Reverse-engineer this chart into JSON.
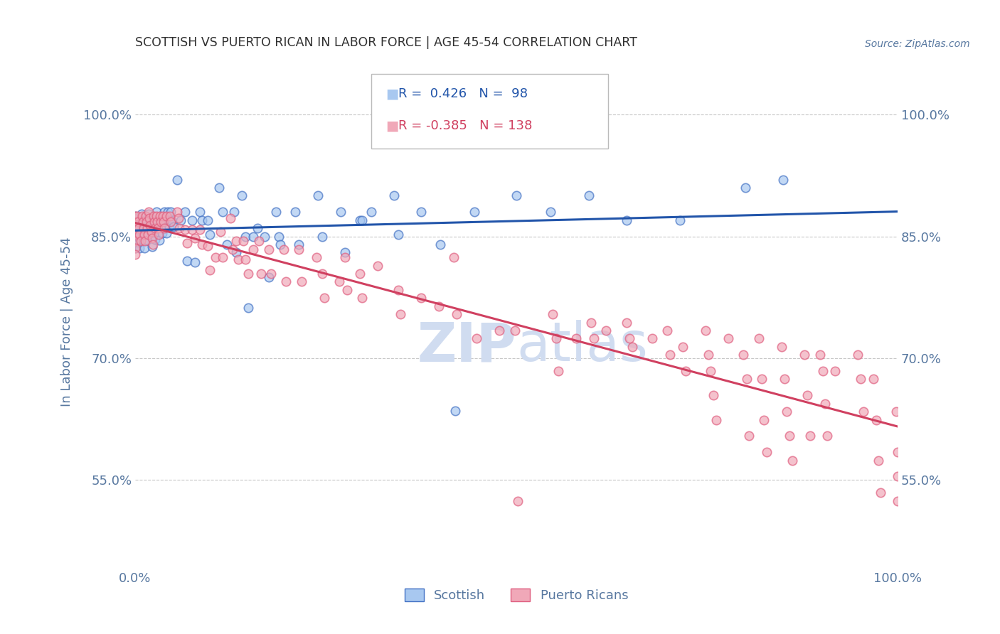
{
  "title": "SCOTTISH VS PUERTO RICAN IN LABOR FORCE | AGE 45-54 CORRELATION CHART",
  "source_text": "Source: ZipAtlas.com",
  "ylabel": "In Labor Force | Age 45-54",
  "xlim": [
    0.0,
    1.0
  ],
  "ylim": [
    0.44,
    1.05
  ],
  "y_ticks": [
    0.55,
    0.7,
    0.85,
    1.0
  ],
  "x_ticks": [
    0.0,
    1.0
  ],
  "scottish_color": "#A8C8F0",
  "puerto_color": "#F0A8B8",
  "scottish_edge_color": "#4472C4",
  "puerto_edge_color": "#E06080",
  "scottish_line_color": "#2255AA",
  "puerto_line_color": "#D04060",
  "watermark_color": "#D0DCF0",
  "background_color": "#FFFFFF",
  "grid_color": "#C8C8C8",
  "title_color": "#303030",
  "axis_label_color": "#5878A0",
  "tick_label_color": "#5878A0",
  "scottish_points": [
    [
      0.0,
      0.87
    ],
    [
      0.0,
      0.875
    ],
    [
      0.0,
      0.86
    ],
    [
      0.0,
      0.855
    ],
    [
      0.0,
      0.848
    ],
    [
      0.0,
      0.842
    ],
    [
      0.0,
      0.836
    ],
    [
      0.0,
      0.858
    ],
    [
      0.0,
      0.864
    ],
    [
      0.002,
      0.872
    ],
    [
      0.003,
      0.866
    ],
    [
      0.004,
      0.858
    ],
    [
      0.005,
      0.85
    ],
    [
      0.005,
      0.843
    ],
    [
      0.006,
      0.836
    ],
    [
      0.008,
      0.878
    ],
    [
      0.009,
      0.87
    ],
    [
      0.01,
      0.862
    ],
    [
      0.01,
      0.854
    ],
    [
      0.011,
      0.844
    ],
    [
      0.012,
      0.836
    ],
    [
      0.013,
      0.87
    ],
    [
      0.014,
      0.862
    ],
    [
      0.015,
      0.854
    ],
    [
      0.016,
      0.845
    ],
    [
      0.018,
      0.878
    ],
    [
      0.019,
      0.87
    ],
    [
      0.02,
      0.862
    ],
    [
      0.021,
      0.854
    ],
    [
      0.022,
      0.837
    ],
    [
      0.024,
      0.87
    ],
    [
      0.025,
      0.854
    ],
    [
      0.026,
      0.846
    ],
    [
      0.028,
      0.88
    ],
    [
      0.03,
      0.862
    ],
    [
      0.031,
      0.854
    ],
    [
      0.032,
      0.845
    ],
    [
      0.033,
      0.87
    ],
    [
      0.034,
      0.862
    ],
    [
      0.035,
      0.854
    ],
    [
      0.038,
      0.88
    ],
    [
      0.039,
      0.87
    ],
    [
      0.04,
      0.862
    ],
    [
      0.041,
      0.854
    ],
    [
      0.043,
      0.88
    ],
    [
      0.044,
      0.87
    ],
    [
      0.045,
      0.862
    ],
    [
      0.047,
      0.88
    ],
    [
      0.048,
      0.87
    ],
    [
      0.05,
      0.862
    ],
    [
      0.055,
      0.92
    ],
    [
      0.06,
      0.87
    ],
    [
      0.065,
      0.88
    ],
    [
      0.068,
      0.82
    ],
    [
      0.075,
      0.87
    ],
    [
      0.078,
      0.818
    ],
    [
      0.085,
      0.88
    ],
    [
      0.088,
      0.87
    ],
    [
      0.095,
      0.87
    ],
    [
      0.098,
      0.852
    ],
    [
      0.11,
      0.91
    ],
    [
      0.115,
      0.88
    ],
    [
      0.12,
      0.84
    ],
    [
      0.13,
      0.88
    ],
    [
      0.132,
      0.83
    ],
    [
      0.14,
      0.9
    ],
    [
      0.145,
      0.85
    ],
    [
      0.148,
      0.762
    ],
    [
      0.155,
      0.85
    ],
    [
      0.16,
      0.86
    ],
    [
      0.17,
      0.85
    ],
    [
      0.175,
      0.8
    ],
    [
      0.185,
      0.88
    ],
    [
      0.188,
      0.85
    ],
    [
      0.19,
      0.84
    ],
    [
      0.21,
      0.88
    ],
    [
      0.215,
      0.84
    ],
    [
      0.24,
      0.9
    ],
    [
      0.245,
      0.85
    ],
    [
      0.27,
      0.88
    ],
    [
      0.275,
      0.83
    ],
    [
      0.295,
      0.87
    ],
    [
      0.298,
      0.87
    ],
    [
      0.31,
      0.88
    ],
    [
      0.34,
      0.9
    ],
    [
      0.345,
      0.852
    ],
    [
      0.375,
      0.88
    ],
    [
      0.4,
      0.84
    ],
    [
      0.42,
      0.635
    ],
    [
      0.445,
      0.88
    ],
    [
      0.5,
      0.9
    ],
    [
      0.545,
      0.88
    ],
    [
      0.595,
      0.9
    ],
    [
      0.645,
      0.87
    ],
    [
      0.715,
      0.87
    ],
    [
      0.8,
      0.91
    ],
    [
      0.85,
      0.92
    ]
  ],
  "puerto_points": [
    [
      0.0,
      0.875
    ],
    [
      0.0,
      0.868
    ],
    [
      0.0,
      0.86
    ],
    [
      0.0,
      0.852
    ],
    [
      0.0,
      0.844
    ],
    [
      0.0,
      0.836
    ],
    [
      0.0,
      0.828
    ],
    [
      0.003,
      0.875
    ],
    [
      0.004,
      0.868
    ],
    [
      0.005,
      0.86
    ],
    [
      0.006,
      0.852
    ],
    [
      0.007,
      0.844
    ],
    [
      0.009,
      0.875
    ],
    [
      0.01,
      0.868
    ],
    [
      0.011,
      0.86
    ],
    [
      0.012,
      0.852
    ],
    [
      0.013,
      0.844
    ],
    [
      0.014,
      0.875
    ],
    [
      0.015,
      0.868
    ],
    [
      0.016,
      0.86
    ],
    [
      0.017,
      0.852
    ],
    [
      0.018,
      0.88
    ],
    [
      0.019,
      0.872
    ],
    [
      0.02,
      0.864
    ],
    [
      0.021,
      0.856
    ],
    [
      0.022,
      0.848
    ],
    [
      0.023,
      0.84
    ],
    [
      0.024,
      0.875
    ],
    [
      0.025,
      0.868
    ],
    [
      0.026,
      0.86
    ],
    [
      0.028,
      0.875
    ],
    [
      0.029,
      0.868
    ],
    [
      0.03,
      0.86
    ],
    [
      0.031,
      0.852
    ],
    [
      0.033,
      0.875
    ],
    [
      0.034,
      0.868
    ],
    [
      0.036,
      0.875
    ],
    [
      0.037,
      0.868
    ],
    [
      0.038,
      0.86
    ],
    [
      0.041,
      0.875
    ],
    [
      0.046,
      0.875
    ],
    [
      0.047,
      0.868
    ],
    [
      0.055,
      0.88
    ],
    [
      0.057,
      0.872
    ],
    [
      0.058,
      0.86
    ],
    [
      0.065,
      0.858
    ],
    [
      0.068,
      0.842
    ],
    [
      0.075,
      0.858
    ],
    [
      0.078,
      0.848
    ],
    [
      0.085,
      0.858
    ],
    [
      0.088,
      0.84
    ],
    [
      0.095,
      0.838
    ],
    [
      0.098,
      0.808
    ],
    [
      0.105,
      0.824
    ],
    [
      0.112,
      0.856
    ],
    [
      0.115,
      0.824
    ],
    [
      0.125,
      0.872
    ],
    [
      0.128,
      0.834
    ],
    [
      0.132,
      0.844
    ],
    [
      0.135,
      0.822
    ],
    [
      0.142,
      0.844
    ],
    [
      0.145,
      0.822
    ],
    [
      0.148,
      0.804
    ],
    [
      0.155,
      0.834
    ],
    [
      0.162,
      0.844
    ],
    [
      0.165,
      0.804
    ],
    [
      0.175,
      0.834
    ],
    [
      0.178,
      0.804
    ],
    [
      0.195,
      0.834
    ],
    [
      0.198,
      0.794
    ],
    [
      0.215,
      0.834
    ],
    [
      0.218,
      0.794
    ],
    [
      0.238,
      0.824
    ],
    [
      0.245,
      0.804
    ],
    [
      0.248,
      0.774
    ],
    [
      0.268,
      0.794
    ],
    [
      0.275,
      0.824
    ],
    [
      0.278,
      0.784
    ],
    [
      0.295,
      0.804
    ],
    [
      0.298,
      0.774
    ],
    [
      0.318,
      0.814
    ],
    [
      0.345,
      0.784
    ],
    [
      0.348,
      0.754
    ],
    [
      0.375,
      0.774
    ],
    [
      0.398,
      0.764
    ],
    [
      0.418,
      0.824
    ],
    [
      0.422,
      0.754
    ],
    [
      0.448,
      0.724
    ],
    [
      0.478,
      0.734
    ],
    [
      0.498,
      0.734
    ],
    [
      0.502,
      0.524
    ],
    [
      0.548,
      0.754
    ],
    [
      0.552,
      0.724
    ],
    [
      0.555,
      0.684
    ],
    [
      0.578,
      0.724
    ],
    [
      0.598,
      0.744
    ],
    [
      0.602,
      0.724
    ],
    [
      0.618,
      0.734
    ],
    [
      0.645,
      0.744
    ],
    [
      0.648,
      0.724
    ],
    [
      0.652,
      0.714
    ],
    [
      0.678,
      0.724
    ],
    [
      0.698,
      0.734
    ],
    [
      0.702,
      0.704
    ],
    [
      0.718,
      0.714
    ],
    [
      0.722,
      0.684
    ],
    [
      0.748,
      0.734
    ],
    [
      0.752,
      0.704
    ],
    [
      0.755,
      0.684
    ],
    [
      0.758,
      0.654
    ],
    [
      0.762,
      0.624
    ],
    [
      0.778,
      0.724
    ],
    [
      0.798,
      0.704
    ],
    [
      0.802,
      0.674
    ],
    [
      0.805,
      0.604
    ],
    [
      0.818,
      0.724
    ],
    [
      0.822,
      0.674
    ],
    [
      0.825,
      0.624
    ],
    [
      0.828,
      0.584
    ],
    [
      0.848,
      0.714
    ],
    [
      0.852,
      0.674
    ],
    [
      0.855,
      0.634
    ],
    [
      0.858,
      0.604
    ],
    [
      0.862,
      0.574
    ],
    [
      0.878,
      0.704
    ],
    [
      0.882,
      0.654
    ],
    [
      0.885,
      0.604
    ],
    [
      0.898,
      0.704
    ],
    [
      0.902,
      0.684
    ],
    [
      0.905,
      0.644
    ],
    [
      0.908,
      0.604
    ],
    [
      0.918,
      0.684
    ],
    [
      0.948,
      0.704
    ],
    [
      0.952,
      0.674
    ],
    [
      0.955,
      0.634
    ],
    [
      0.968,
      0.674
    ],
    [
      0.972,
      0.624
    ],
    [
      0.975,
      0.574
    ],
    [
      0.978,
      0.534
    ],
    [
      0.998,
      0.634
    ],
    [
      1.0,
      0.584
    ],
    [
      1.0,
      0.554
    ],
    [
      1.0,
      0.524
    ]
  ]
}
